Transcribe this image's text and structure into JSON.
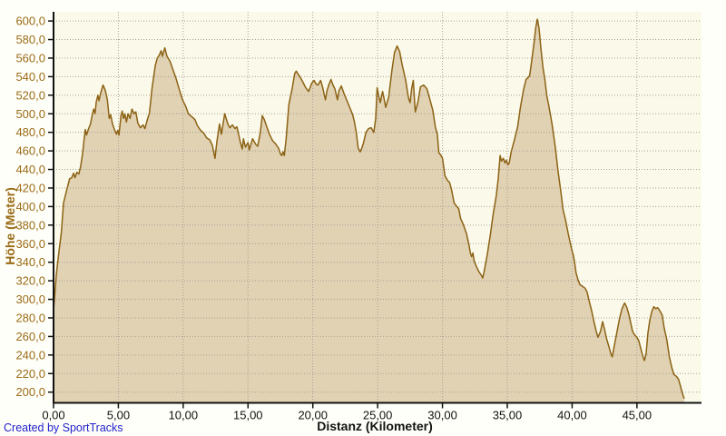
{
  "footer": {
    "credit": "Created by SportTracks"
  },
  "colors": {
    "plot_background": "#FBFAEA",
    "page_background": "#FFFFFA",
    "area_fill": "#E1D2B4",
    "line": "#8C6214",
    "grid": "#A8A093",
    "axis": "#111111",
    "y_label_text": "#9A6B16",
    "x_label_text": "#111111",
    "footer_text": "#2222CC"
  },
  "chart_data": {
    "type": "area",
    "title": "",
    "xlabel": "Distanz (Kilometer)",
    "ylabel": "Höhe (Meter)",
    "grid": true,
    "legend": "none",
    "xlim": [
      0,
      50
    ],
    "ylim": [
      188,
      612
    ],
    "x_ticks": [
      0,
      5,
      10,
      15,
      20,
      25,
      30,
      35,
      40,
      45
    ],
    "x_tick_labels": [
      "0,00",
      "5,00",
      "10,00",
      "15,00",
      "20,00",
      "25,00",
      "30,00",
      "35,00",
      "40,00",
      "45,00"
    ],
    "y_ticks": [
      200,
      220,
      240,
      260,
      280,
      300,
      320,
      340,
      360,
      380,
      400,
      420,
      440,
      460,
      480,
      500,
      520,
      540,
      560,
      580,
      600
    ],
    "y_tick_labels": [
      "200,0",
      "220,0",
      "240,0",
      "260,0",
      "280,0",
      "300,0",
      "320,0",
      "340,0",
      "360,0",
      "380,0",
      "400,0",
      "420,0",
      "440,0",
      "460,0",
      "480,0",
      "500,0",
      "520,0",
      "540,0",
      "560,0",
      "580,0",
      "600,0"
    ],
    "series": [
      {
        "name": "Höhe",
        "points": [
          [
            0,
            288
          ],
          [
            0.1,
            305
          ],
          [
            0.2,
            325
          ],
          [
            0.42,
            352
          ],
          [
            0.6,
            372
          ],
          [
            0.77,
            404
          ],
          [
            1,
            417
          ],
          [
            1.24,
            430
          ],
          [
            1.4,
            431
          ],
          [
            1.55,
            436
          ],
          [
            1.65,
            431
          ],
          [
            1.8,
            437
          ],
          [
            1.95,
            435
          ],
          [
            2.1,
            444
          ],
          [
            2.25,
            458
          ],
          [
            2.35,
            472
          ],
          [
            2.45,
            483
          ],
          [
            2.55,
            477
          ],
          [
            2.7,
            484
          ],
          [
            2.85,
            489
          ],
          [
            3,
            500
          ],
          [
            3.1,
            505
          ],
          [
            3.2,
            500
          ],
          [
            3.3,
            513
          ],
          [
            3.42,
            520
          ],
          [
            3.5,
            514
          ],
          [
            3.65,
            523
          ],
          [
            3.82,
            531
          ],
          [
            4,
            525
          ],
          [
            4.15,
            515
          ],
          [
            4.3,
            495
          ],
          [
            4.4,
            499
          ],
          [
            4.55,
            489
          ],
          [
            4.7,
            483
          ],
          [
            4.85,
            478
          ],
          [
            4.95,
            482
          ],
          [
            5.05,
            477
          ],
          [
            5.2,
            498
          ],
          [
            5.3,
            503
          ],
          [
            5.4,
            495
          ],
          [
            5.5,
            500
          ],
          [
            5.62,
            491
          ],
          [
            5.75,
            500
          ],
          [
            5.9,
            495
          ],
          [
            6.05,
            505
          ],
          [
            6.2,
            500
          ],
          [
            6.35,
            502
          ],
          [
            6.5,
            490
          ],
          [
            6.7,
            485
          ],
          [
            6.9,
            488
          ],
          [
            7.05,
            484
          ],
          [
            7.2,
            492
          ],
          [
            7.4,
            501
          ],
          [
            7.6,
            528
          ],
          [
            7.85,
            552
          ],
          [
            8,
            560
          ],
          [
            8.15,
            563
          ],
          [
            8.3,
            568
          ],
          [
            8.4,
            562
          ],
          [
            8.58,
            571
          ],
          [
            8.75,
            562
          ],
          [
            9,
            556
          ],
          [
            9.2,
            548
          ],
          [
            9.45,
            538
          ],
          [
            9.7,
            526
          ],
          [
            9.95,
            515
          ],
          [
            10.2,
            508
          ],
          [
            10.4,
            500
          ],
          [
            10.65,
            497
          ],
          [
            10.9,
            494
          ],
          [
            11.1,
            487
          ],
          [
            11.35,
            482
          ],
          [
            11.6,
            479
          ],
          [
            11.8,
            474
          ],
          [
            12.05,
            472
          ],
          [
            12.25,
            466
          ],
          [
            12.45,
            452
          ],
          [
            12.6,
            470
          ],
          [
            12.8,
            489
          ],
          [
            12.95,
            478
          ],
          [
            13.2,
            500
          ],
          [
            13.45,
            489
          ],
          [
            13.6,
            485
          ],
          [
            13.8,
            488
          ],
          [
            14,
            484
          ],
          [
            14.15,
            486
          ],
          [
            14.4,
            470
          ],
          [
            14.55,
            462
          ],
          [
            14.65,
            473
          ],
          [
            14.8,
            464
          ],
          [
            15,
            469
          ],
          [
            15.1,
            461
          ],
          [
            15.35,
            473
          ],
          [
            15.6,
            467
          ],
          [
            15.75,
            465
          ],
          [
            15.95,
            480
          ],
          [
            16.1,
            498
          ],
          [
            16.25,
            494
          ],
          [
            16.45,
            486
          ],
          [
            16.65,
            478
          ],
          [
            16.9,
            471
          ],
          [
            17.1,
            468
          ],
          [
            17.35,
            463
          ],
          [
            17.5,
            457
          ],
          [
            17.6,
            455
          ],
          [
            17.7,
            459
          ],
          [
            17.8,
            455
          ],
          [
            17.95,
            474
          ],
          [
            18.15,
            510
          ],
          [
            18.4,
            527
          ],
          [
            18.6,
            543
          ],
          [
            18.72,
            546
          ],
          [
            18.85,
            543
          ],
          [
            19,
            540
          ],
          [
            19.2,
            535
          ],
          [
            19.45,
            528
          ],
          [
            19.68,
            524
          ],
          [
            19.92,
            533
          ],
          [
            20.1,
            536
          ],
          [
            20.25,
            532
          ],
          [
            20.4,
            531
          ],
          [
            20.6,
            536
          ],
          [
            20.75,
            529
          ],
          [
            20.97,
            515
          ],
          [
            21.1,
            525
          ],
          [
            21.25,
            532
          ],
          [
            21.4,
            537
          ],
          [
            21.55,
            531
          ],
          [
            21.7,
            527
          ],
          [
            21.9,
            515
          ],
          [
            22.02,
            525
          ],
          [
            22.2,
            530
          ],
          [
            22.4,
            522
          ],
          [
            22.6,
            515
          ],
          [
            22.84,
            507
          ],
          [
            23.07,
            499
          ],
          [
            23.2,
            492
          ],
          [
            23.35,
            480
          ],
          [
            23.5,
            463
          ],
          [
            23.65,
            459
          ],
          [
            23.75,
            462
          ],
          [
            23.9,
            468
          ],
          [
            24.1,
            480
          ],
          [
            24.3,
            484
          ],
          [
            24.5,
            485
          ],
          [
            24.7,
            480
          ],
          [
            24.85,
            495
          ],
          [
            24.96,
            528
          ],
          [
            25.1,
            518
          ],
          [
            25.2,
            512
          ],
          [
            25.38,
            524
          ],
          [
            25.5,
            516
          ],
          [
            25.62,
            507
          ],
          [
            25.85,
            518
          ],
          [
            26.1,
            547
          ],
          [
            26.3,
            566
          ],
          [
            26.5,
            573
          ],
          [
            26.7,
            567
          ],
          [
            26.9,
            552
          ],
          [
            27.15,
            537
          ],
          [
            27.38,
            517
          ],
          [
            27.5,
            512
          ],
          [
            27.62,
            527
          ],
          [
            27.75,
            536
          ],
          [
            27.9,
            502
          ],
          [
            28.1,
            512
          ],
          [
            28.3,
            529
          ],
          [
            28.55,
            531
          ],
          [
            28.8,
            527
          ],
          [
            29,
            517
          ],
          [
            29.25,
            504
          ],
          [
            29.45,
            486
          ],
          [
            29.6,
            478
          ],
          [
            29.72,
            458
          ],
          [
            29.85,
            456
          ],
          [
            30,
            452
          ],
          [
            30.2,
            433
          ],
          [
            30.4,
            428
          ],
          [
            30.55,
            426
          ],
          [
            30.7,
            418
          ],
          [
            30.9,
            404
          ],
          [
            31.1,
            400
          ],
          [
            31.25,
            398
          ],
          [
            31.4,
            387
          ],
          [
            31.6,
            381
          ],
          [
            31.85,
            371
          ],
          [
            32.05,
            358
          ],
          [
            32.15,
            350
          ],
          [
            32.25,
            346
          ],
          [
            32.35,
            350
          ],
          [
            32.45,
            341
          ],
          [
            32.6,
            336
          ],
          [
            32.8,
            330
          ],
          [
            33,
            326
          ],
          [
            33.1,
            323
          ],
          [
            33.2,
            329
          ],
          [
            33.45,
            348
          ],
          [
            33.7,
            370
          ],
          [
            33.9,
            391
          ],
          [
            34.15,
            412
          ],
          [
            34.3,
            430
          ],
          [
            34.45,
            455
          ],
          [
            34.55,
            449
          ],
          [
            34.7,
            452
          ],
          [
            34.82,
            447
          ],
          [
            34.92,
            450
          ],
          [
            35.05,
            445
          ],
          [
            35.15,
            447
          ],
          [
            35.3,
            459
          ],
          [
            35.55,
            472
          ],
          [
            35.8,
            486
          ],
          [
            36,
            506
          ],
          [
            36.25,
            526
          ],
          [
            36.45,
            537
          ],
          [
            36.6,
            539
          ],
          [
            36.72,
            541
          ],
          [
            36.88,
            557
          ],
          [
            37.05,
            575
          ],
          [
            37.2,
            593
          ],
          [
            37.32,
            602
          ],
          [
            37.45,
            592
          ],
          [
            37.6,
            570
          ],
          [
            37.75,
            550
          ],
          [
            37.9,
            537
          ],
          [
            38.05,
            519
          ],
          [
            38.2,
            509
          ],
          [
            38.45,
            489
          ],
          [
            38.7,
            464
          ],
          [
            38.9,
            440
          ],
          [
            39.15,
            414
          ],
          [
            39.3,
            397
          ],
          [
            39.5,
            385
          ],
          [
            39.7,
            371
          ],
          [
            39.95,
            355
          ],
          [
            40.1,
            347
          ],
          [
            40.2,
            339
          ],
          [
            40.3,
            329
          ],
          [
            40.45,
            321
          ],
          [
            40.6,
            316
          ],
          [
            40.8,
            314
          ],
          [
            41,
            312
          ],
          [
            41.15,
            308
          ],
          [
            41.3,
            299
          ],
          [
            41.5,
            288
          ],
          [
            41.7,
            275
          ],
          [
            41.85,
            266
          ],
          [
            42,
            259
          ],
          [
            42.2,
            266
          ],
          [
            42.35,
            276
          ],
          [
            42.5,
            268
          ],
          [
            42.65,
            258
          ],
          [
            42.8,
            251
          ],
          [
            43,
            241
          ],
          [
            43.1,
            238
          ],
          [
            43.25,
            250
          ],
          [
            43.45,
            264
          ],
          [
            43.65,
            279
          ],
          [
            43.85,
            290
          ],
          [
            44.05,
            296
          ],
          [
            44.2,
            292
          ],
          [
            44.35,
            285
          ],
          [
            44.5,
            276
          ],
          [
            44.65,
            266
          ],
          [
            44.8,
            262
          ],
          [
            45,
            259
          ],
          [
            45.15,
            255
          ],
          [
            45.3,
            247
          ],
          [
            45.45,
            239
          ],
          [
            45.58,
            234
          ],
          [
            45.7,
            241
          ],
          [
            45.85,
            264
          ],
          [
            46,
            278
          ],
          [
            46.15,
            287
          ],
          [
            46.3,
            292
          ],
          [
            46.45,
            290
          ],
          [
            46.6,
            291
          ],
          [
            46.75,
            288
          ],
          [
            46.95,
            283
          ],
          [
            47.1,
            269
          ],
          [
            47.3,
            257
          ],
          [
            47.5,
            238
          ],
          [
            47.7,
            226
          ],
          [
            47.85,
            219
          ],
          [
            48.05,
            217
          ],
          [
            48.2,
            214
          ],
          [
            48.35,
            207
          ],
          [
            48.5,
            199
          ],
          [
            48.65,
            193
          ]
        ]
      }
    ]
  }
}
